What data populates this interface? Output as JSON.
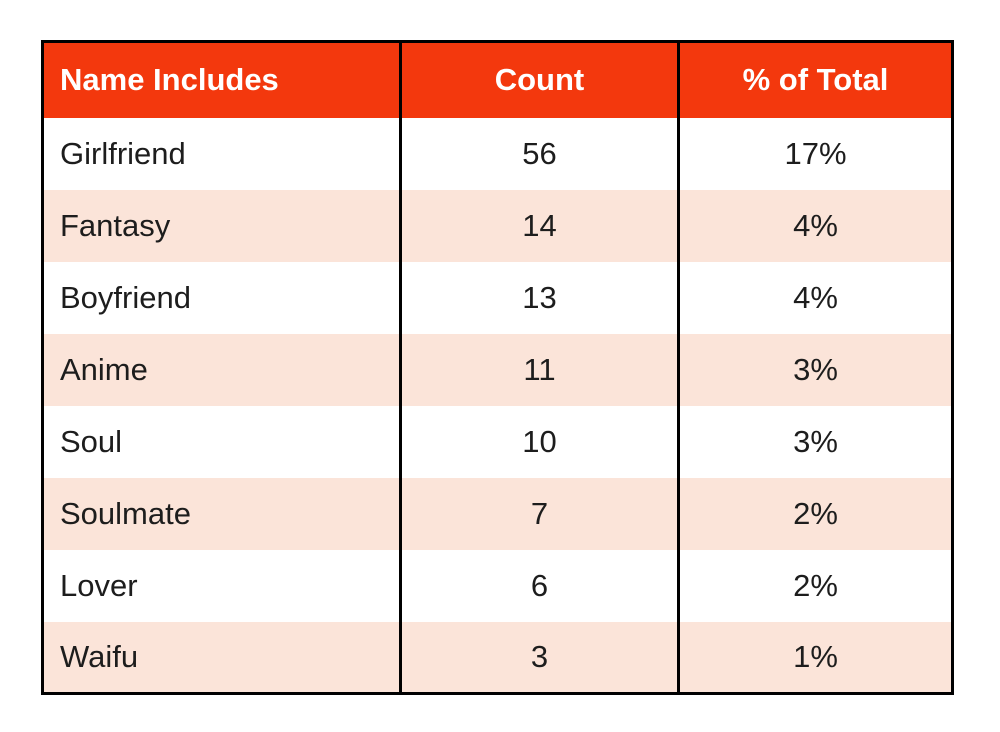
{
  "table": {
    "headers": [
      "Name Includes",
      "Count",
      "% of Total"
    ],
    "rows": [
      {
        "name": "Girlfriend",
        "count": "56",
        "percent": "17%"
      },
      {
        "name": "Fantasy",
        "count": "14",
        "percent": "4%"
      },
      {
        "name": "Boyfriend",
        "count": "13",
        "percent": "4%"
      },
      {
        "name": "Anime",
        "count": "11",
        "percent": "3%"
      },
      {
        "name": "Soul",
        "count": "10",
        "percent": "3%"
      },
      {
        "name": "Soulmate",
        "count": "7",
        "percent": "2%"
      },
      {
        "name": "Lover",
        "count": "6",
        "percent": "2%"
      },
      {
        "name": "Waifu",
        "count": "3",
        "percent": "1%"
      }
    ]
  },
  "colors": {
    "header_bg": "#f3380d",
    "header_text": "#ffffff",
    "row_bg": "#ffffff",
    "row_alt_bg": "#fbe4d9",
    "body_text": "#1d1d1d",
    "border": "#000000"
  },
  "chart_data": {
    "type": "table",
    "title": "",
    "columns": [
      "Name Includes",
      "Count",
      "% of Total"
    ],
    "rows": [
      [
        "Girlfriend",
        56,
        "17%"
      ],
      [
        "Fantasy",
        14,
        "4%"
      ],
      [
        "Boyfriend",
        13,
        "4%"
      ],
      [
        "Anime",
        11,
        "3%"
      ],
      [
        "Soul",
        10,
        "3%"
      ],
      [
        "Soulmate",
        7,
        "2%"
      ],
      [
        "Lover",
        6,
        "2%"
      ],
      [
        "Waifu",
        3,
        "1%"
      ]
    ]
  }
}
